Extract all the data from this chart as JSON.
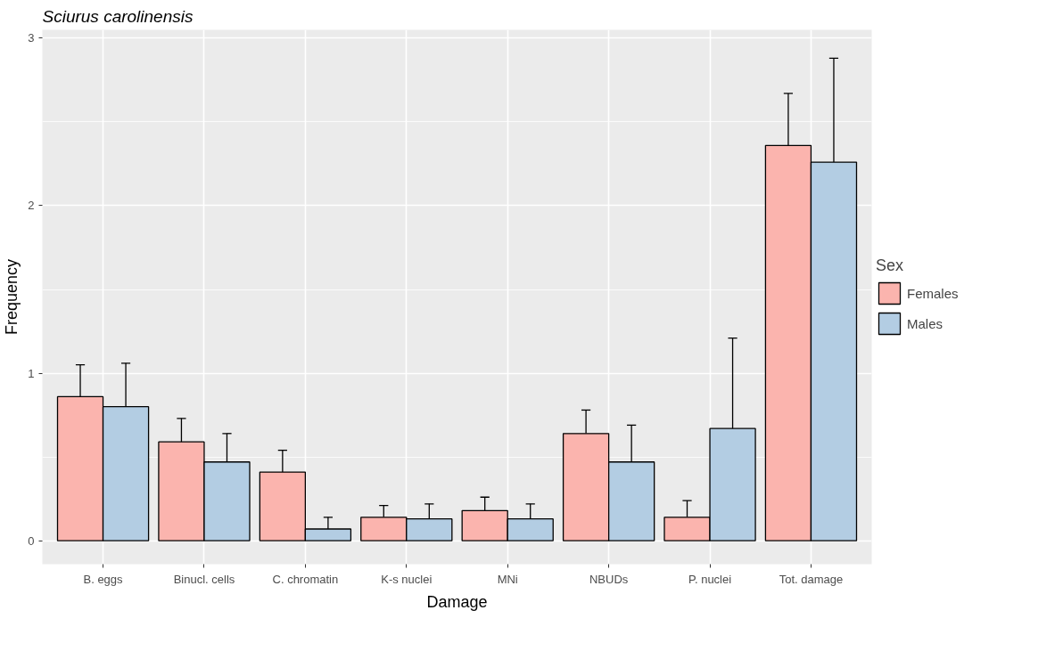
{
  "chart_data": {
    "type": "bar",
    "title": "Sciurus carolinensis",
    "xlabel": "Damage",
    "ylabel": "Frequency",
    "legend_title": "Sex",
    "categories": [
      "B. eggs",
      "Binucl. cells",
      "C. chromatin",
      "K-s nuclei",
      "MNi",
      "NBUDs",
      "P. nuclei",
      "Tot. damage"
    ],
    "series": [
      {
        "name": "Females",
        "color": "#fbb4ae",
        "values": [
          0.86,
          0.59,
          0.41,
          0.14,
          0.18,
          0.64,
          0.14,
          2.36
        ],
        "errors": [
          [
            0.86,
            1.05
          ],
          [
            0.59,
            0.73
          ],
          [
            0.41,
            0.54
          ],
          [
            0.14,
            0.21
          ],
          [
            0.18,
            0.26
          ],
          [
            0.64,
            0.78
          ],
          [
            0.14,
            0.24
          ],
          [
            2.36,
            2.67
          ]
        ]
      },
      {
        "name": "Males",
        "color": "#b3cde3",
        "values": [
          0.8,
          0.47,
          0.07,
          0.13,
          0.13,
          0.47,
          0.67,
          2.26
        ],
        "errors": [
          [
            0.8,
            1.06
          ],
          [
            0.47,
            0.64
          ],
          [
            0.07,
            0.14
          ],
          [
            0.13,
            0.22
          ],
          [
            0.13,
            0.22
          ],
          [
            0.47,
            0.69
          ],
          [
            0.67,
            1.21
          ],
          [
            2.26,
            2.88
          ]
        ]
      }
    ],
    "ylim": [
      -0.14,
      3.05
    ],
    "yticks": [
      0,
      {
        "value": 0.5,
        "label": null
      },
      1,
      {
        "value": 1.5,
        "label": null
      },
      2,
      {
        "value": 2.5,
        "label": null
      },
      3
    ],
    "grid": true,
    "legend": "right"
  }
}
